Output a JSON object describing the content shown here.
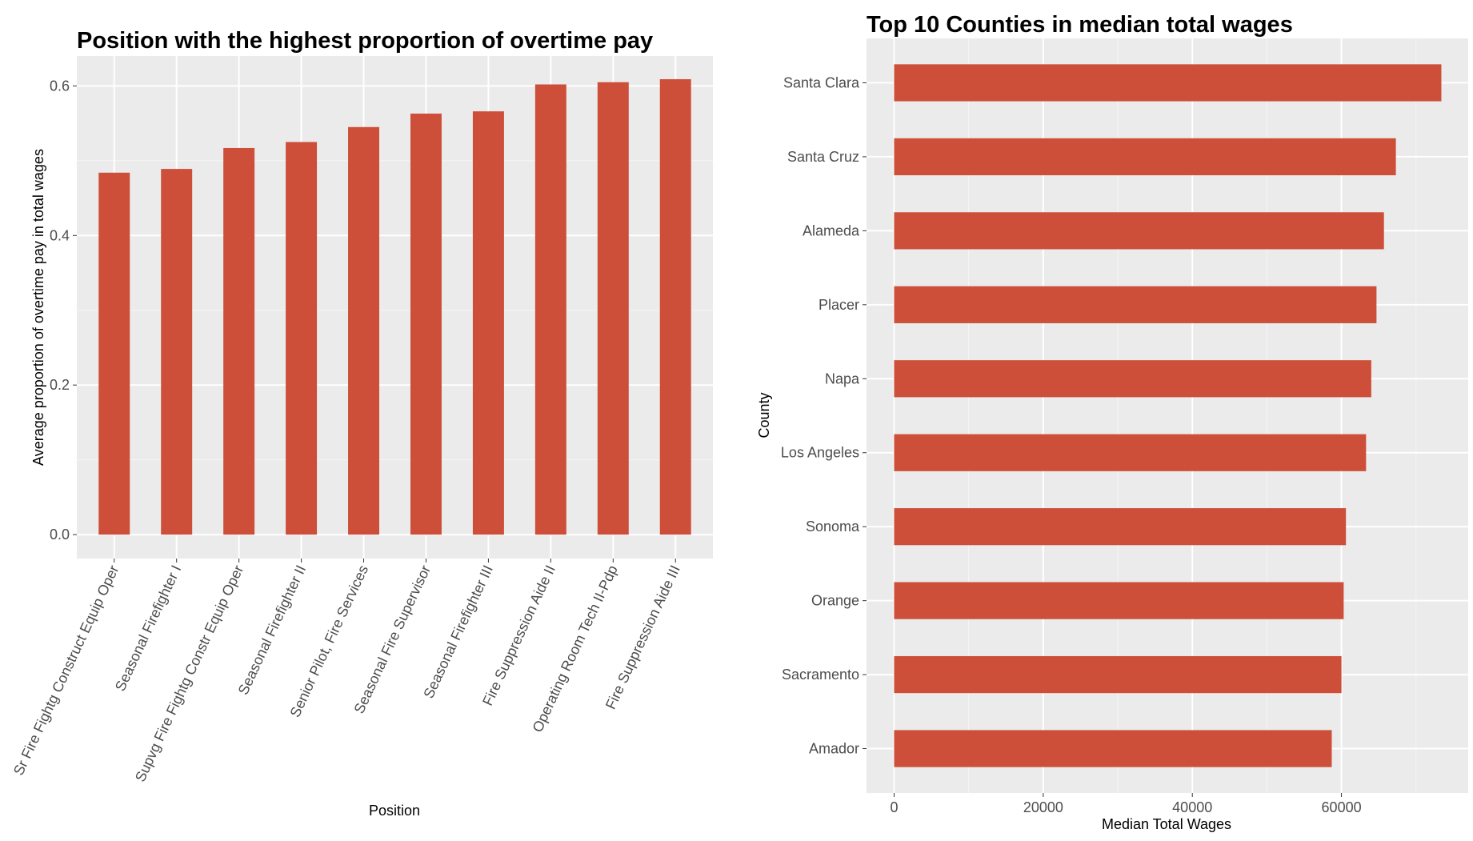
{
  "chart_data": [
    {
      "type": "bar",
      "orientation": "vertical",
      "title": "Position with the highest proportion of overtime pay",
      "xlabel": "Position",
      "ylabel": "Average proportion of overtime pay in total wages",
      "categories": [
        "Sr Fire Fightg Construct Equip Oper",
        "Seasonal Firefighter I",
        "Supvg Fire Fightg Constr Equip Oper",
        "Seasonal Firefighter II",
        "Senior Pilot, Fire Services",
        "Seasonal Fire Supervisor",
        "Seasonal Firefighter III",
        "Fire Suppression Aide II",
        "Operating Room Tech II-Pdp",
        "Fire Suppression Aide III"
      ],
      "values": [
        0.484,
        0.489,
        0.517,
        0.525,
        0.545,
        0.563,
        0.566,
        0.602,
        0.605,
        0.609
      ],
      "ylim": [
        -0.032,
        0.64
      ],
      "yticks": [
        0.0,
        0.2,
        0.4,
        0.6
      ],
      "ytick_labels": [
        "0.0",
        "0.2",
        "0.4",
        "0.6"
      ],
      "grid": true,
      "bar_color": "#cd4f3a"
    },
    {
      "type": "bar",
      "orientation": "horizontal",
      "title": "Top 10 Counties in median total wages",
      "xlabel": "Median Total Wages",
      "ylabel": "County",
      "categories": [
        "Santa Clara",
        "Santa Cruz",
        "Alameda",
        "Placer",
        "Napa",
        "Los Angeles",
        "Sonoma",
        "Orange",
        "Sacramento",
        "Amador"
      ],
      "values": [
        73400,
        67300,
        65700,
        64700,
        64000,
        63300,
        60600,
        60300,
        60000,
        58700
      ],
      "xlim": [
        -3700,
        77000
      ],
      "xticks": [
        0,
        20000,
        40000,
        60000
      ],
      "xtick_labels": [
        "0",
        "20000",
        "40000",
        "60000"
      ],
      "grid": true,
      "bar_color": "#cd4f3a"
    }
  ]
}
